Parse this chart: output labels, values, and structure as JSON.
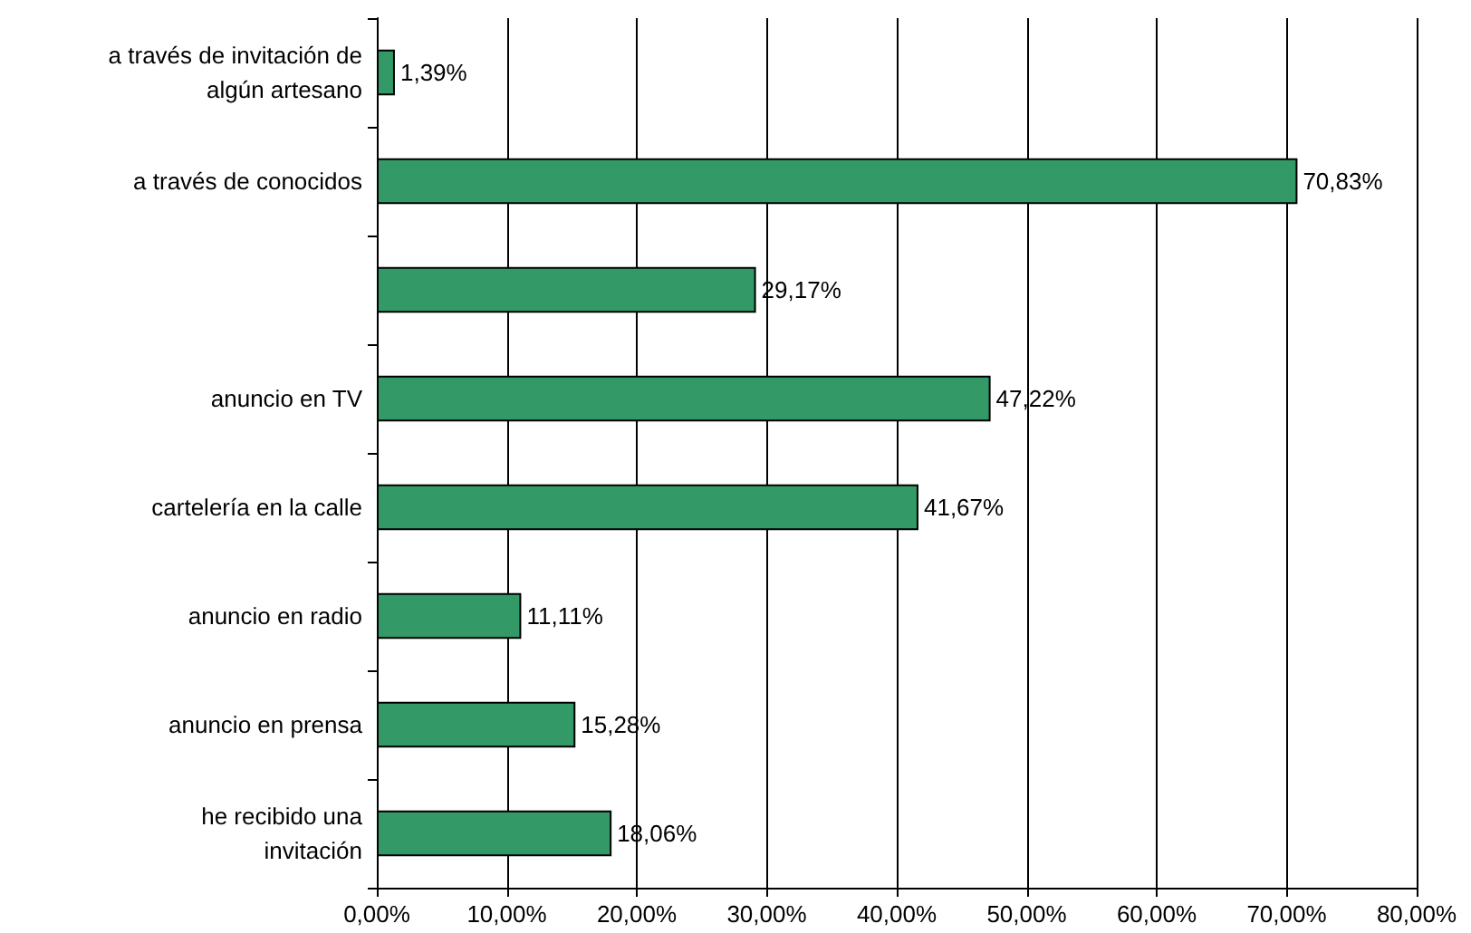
{
  "chart_data": {
    "type": "bar",
    "orientation": "horizontal",
    "categories": [
      "a través de invitación de\nalgún artesano",
      "a través de conocidos",
      null,
      "anuncio en TV",
      "cartelería en la calle",
      "anuncio en radio",
      "anuncio en prensa",
      "he recibido una\ninvitación"
    ],
    "values": [
      1.39,
      70.83,
      29.17,
      47.22,
      41.67,
      11.11,
      15.28,
      18.06
    ],
    "value_labels": [
      "1,39%",
      "70,83%",
      "29,17%",
      "47,22%",
      "41,67%",
      "11,11%",
      "15,28%",
      "18,06%"
    ],
    "color": "#339966",
    "xlim": [
      0,
      80
    ],
    "xticks": [
      {
        "value": 0,
        "label": "0,00%"
      },
      {
        "value": 10,
        "label": "10,00%"
      },
      {
        "value": 20,
        "label": "20,00%"
      },
      {
        "value": 30,
        "label": "30,00%"
      },
      {
        "value": 40,
        "label": "40,00%"
      },
      {
        "value": 50,
        "label": "50,00%"
      },
      {
        "value": 60,
        "label": "60,00%"
      },
      {
        "value": 70,
        "label": "70,00%"
      },
      {
        "value": 80,
        "label": "80,00%"
      }
    ],
    "grid": "x"
  }
}
